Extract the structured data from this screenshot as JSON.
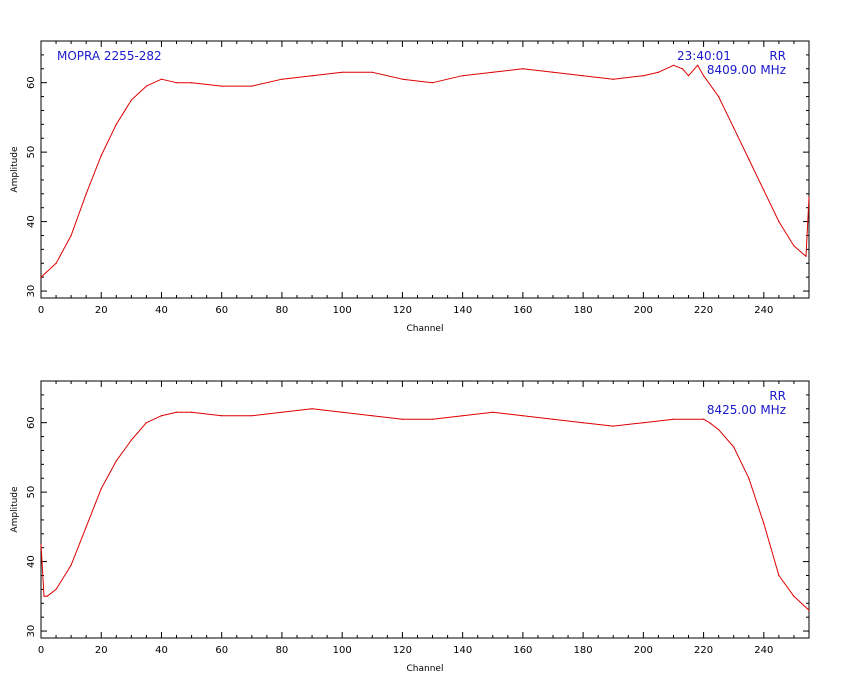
{
  "colors": {
    "trace": "#dd0000",
    "annotation": "#1a1acc",
    "axis": "#000000"
  },
  "chart_data": [
    {
      "type": "line",
      "title": "",
      "xlabel": "Channel",
      "ylabel": "Amplitude",
      "xlim": [
        0,
        255
      ],
      "ylim": [
        29,
        66
      ],
      "xticks": [
        0,
        20,
        40,
        60,
        80,
        100,
        120,
        140,
        160,
        180,
        200,
        220,
        240
      ],
      "xtick_labels": [
        "0",
        "20",
        "40",
        "60",
        "80",
        "100",
        "120",
        "140",
        "160",
        "180",
        "200",
        "220",
        "240"
      ],
      "yticks": [
        30,
        40,
        50,
        60
      ],
      "ytick_labels": [
        "30",
        "40",
        "50",
        "60"
      ],
      "grid": false,
      "annotations": {
        "source": "MOPRA 2255-282",
        "time": "23:40:01",
        "polarization": "RR",
        "frequency": "8409.00 MHz"
      },
      "series": [
        {
          "x": [
            0,
            5,
            10,
            15,
            20,
            25,
            30,
            35,
            40,
            45,
            50,
            60,
            70,
            80,
            90,
            100,
            110,
            120,
            130,
            140,
            150,
            160,
            170,
            180,
            190,
            200,
            205,
            210,
            213,
            215,
            218,
            220,
            225,
            230,
            235,
            240,
            245,
            250,
            254,
            255
          ],
          "y": [
            32,
            34,
            38,
            44,
            49.5,
            54,
            57.5,
            59.5,
            60.5,
            60,
            60,
            59.5,
            59.5,
            60.5,
            61,
            61.5,
            61.5,
            60.5,
            60,
            61,
            61.5,
            62,
            61.5,
            61,
            60.5,
            61,
            61.5,
            62.5,
            62,
            61,
            62.5,
            61,
            58,
            53.5,
            49,
            44.5,
            40,
            36.5,
            35,
            43.5
          ]
        }
      ]
    },
    {
      "type": "line",
      "title": "",
      "xlabel": "Channel",
      "ylabel": "Amplitude",
      "xlim": [
        0,
        255
      ],
      "ylim": [
        29,
        66
      ],
      "xticks": [
        0,
        20,
        40,
        60,
        80,
        100,
        120,
        140,
        160,
        180,
        200,
        220,
        240
      ],
      "xtick_labels": [
        "0",
        "20",
        "40",
        "60",
        "80",
        "100",
        "120",
        "140",
        "160",
        "180",
        "200",
        "220",
        "240"
      ],
      "yticks": [
        30,
        40,
        50,
        60
      ],
      "ytick_labels": [
        "30",
        "40",
        "50",
        "60"
      ],
      "grid": false,
      "annotations": {
        "source": "",
        "time": "",
        "polarization": "RR",
        "frequency": "8425.00 MHz"
      },
      "series": [
        {
          "x": [
            0,
            1,
            2,
            5,
            10,
            15,
            20,
            25,
            30,
            35,
            40,
            45,
            50,
            60,
            70,
            80,
            90,
            100,
            110,
            120,
            130,
            140,
            150,
            160,
            170,
            180,
            190,
            200,
            210,
            220,
            222,
            225,
            230,
            235,
            240,
            245,
            250,
            255
          ],
          "y": [
            42.5,
            35,
            35,
            36,
            39.5,
            45,
            50.5,
            54.5,
            57.5,
            60,
            61,
            61.5,
            61.5,
            61,
            61,
            61.5,
            62,
            61.5,
            61,
            60.5,
            60.5,
            61,
            61.5,
            61,
            60.5,
            60,
            59.5,
            60,
            60.5,
            60.5,
            60,
            59,
            56.5,
            52,
            45.5,
            38,
            35,
            33
          ]
        }
      ]
    }
  ]
}
